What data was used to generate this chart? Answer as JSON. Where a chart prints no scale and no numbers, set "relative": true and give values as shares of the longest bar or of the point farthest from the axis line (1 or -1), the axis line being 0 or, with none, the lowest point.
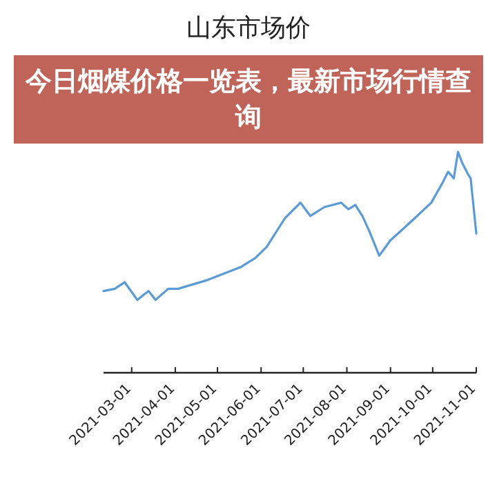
{
  "chart_data": {
    "type": "line",
    "title": "山东市场价",
    "relative": true,
    "annotations": [
      "今日烟煤价格一览表，最新市场行情查询"
    ],
    "x": [
      "2021-02-09",
      "2021-02-17",
      "2021-02-24",
      "2021-03-05",
      "2021-03-13",
      "2021-03-18",
      "2021-03-27",
      "2021-04-03",
      "2021-04-24",
      "2021-05-18",
      "2021-05-28",
      "2021-06-05",
      "2021-06-18",
      "2021-06-29",
      "2021-07-06",
      "2021-07-16",
      "2021-07-28",
      "2021-08-02",
      "2021-08-07",
      "2021-08-12",
      "2021-08-17",
      "2021-08-24",
      "2021-09-01",
      "2021-09-08",
      "2021-09-20",
      "2021-09-25",
      "2021-09-30",
      "2021-10-08",
      "2021-10-12",
      "2021-10-16",
      "2021-10-19",
      "2021-10-22",
      "2021-10-26",
      "2021-10-28",
      "2021-11-01"
    ],
    "series": [
      {
        "color": "#5b9bd5",
        "values": [
          0.37,
          0.38,
          0.41,
          0.33,
          0.37,
          0.33,
          0.38,
          0.38,
          0.42,
          0.48,
          0.52,
          0.57,
          0.7,
          0.77,
          0.71,
          0.75,
          0.77,
          0.74,
          0.76,
          0.71,
          0.64,
          0.53,
          0.6,
          0.64,
          0.71,
          0.74,
          0.77,
          0.86,
          0.91,
          0.88,
          1,
          0.95,
          0.9,
          0.88,
          0.63
        ]
      }
    ],
    "xlim": [
      "2021-02-09",
      "2021-11-01"
    ],
    "xticks": [
      "2021-03-01",
      "2021-04-01",
      "2021-05-01",
      "2021-06-01",
      "2021-07-01",
      "2021-08-01",
      "2021-09-01",
      "2021-10-01",
      "2021-11-01"
    ]
  }
}
